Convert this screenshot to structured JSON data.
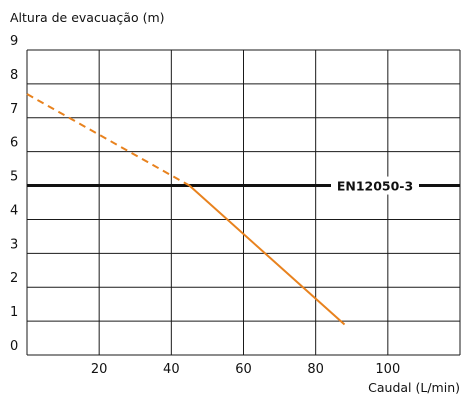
{
  "chart_data": {
    "type": "line",
    "ylabel": "Altura de evacuação (m)",
    "xlabel": "Caudal (L/min)",
    "xlim": [
      0,
      120
    ],
    "ylim": [
      0,
      9
    ],
    "x_ticks": [
      "20",
      "40",
      "60",
      "80",
      "100"
    ],
    "y_ticks": [
      "0",
      "1",
      "2",
      "3",
      "4",
      "5",
      "6",
      "7",
      "8",
      "9"
    ],
    "grid": true,
    "series": [
      {
        "style": "dashed",
        "color": "#E8821E",
        "points": [
          [
            0,
            7.7
          ],
          [
            45,
            5.0
          ]
        ]
      },
      {
        "style": "solid",
        "color": "#E8821E",
        "points": [
          [
            45,
            5.0
          ],
          [
            88,
            0.9
          ]
        ]
      }
    ],
    "reference_line": {
      "y": 5,
      "label": "EN12050-3",
      "color": "#111111"
    }
  }
}
